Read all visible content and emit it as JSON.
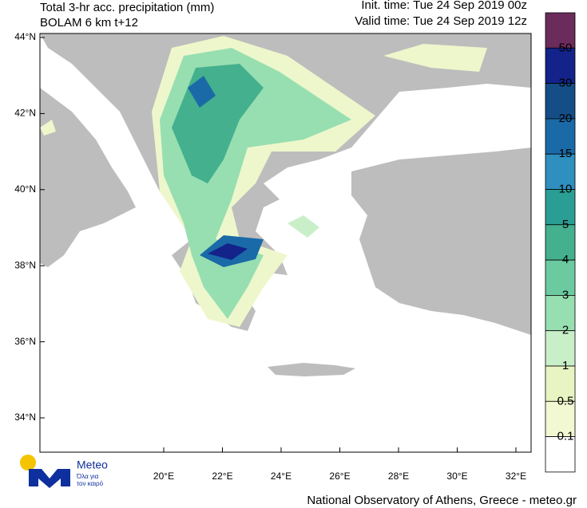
{
  "header": {
    "title": "Total 3-hr acc. precipitation (mm)",
    "subtitle": "BOLAM 6 km t+12",
    "init_time": "Init. time: Tue 24 Sep 2019 00z",
    "valid_time": "Valid time: Tue 24 Sep 2019 12z"
  },
  "map": {
    "lat_labels": [
      "44°N",
      "42°N",
      "40°N",
      "38°N",
      "36°N",
      "34°N"
    ],
    "lon_labels": [
      "20°E",
      "22°E",
      "24°E",
      "26°E",
      "28°E",
      "30°E",
      "32°E"
    ]
  },
  "colorbar": {
    "labels": [
      50,
      30,
      20,
      15,
      10,
      5,
      4,
      3,
      2,
      1,
      0.5,
      0.1
    ],
    "colors": [
      "#6b2b5b",
      "#13238a",
      "#154e86",
      "#1a6aa8",
      "#2f8fbf",
      "#2a9e94",
      "#44b08e",
      "#6ccaa0",
      "#97dfb1",
      "#c9efc9",
      "#e8f5c2",
      "#f1f8d2",
      "#ffffff"
    ]
  },
  "logo": {
    "name": "Meteo",
    "tagline_1": "Όλα για",
    "tagline_2": "τον καιρό"
  },
  "footer": "National Observatory of Athens, Greece - meteo.gr"
}
